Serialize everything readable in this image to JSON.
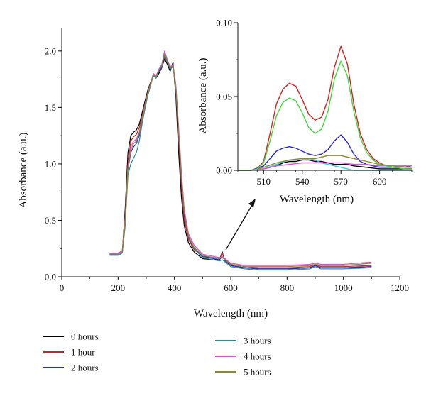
{
  "chart_data": [
    {
      "type": "line",
      "xlabel": "Wavelength (nm)",
      "ylabel": "Absorbance (a.u.)",
      "xlim": [
        0,
        1200
      ],
      "ylim": [
        0,
        2.2
      ],
      "xticks": [
        0,
        200,
        400,
        600,
        800,
        1000,
        1200
      ],
      "yticks": [
        0.0,
        0.5,
        1.0,
        1.5,
        2.0
      ],
      "xtick_labels": [
        "0",
        "200",
        "400",
        "600",
        "800",
        "1000",
        "1200"
      ],
      "ytick_labels": [
        "0.0",
        "0.5",
        "1.0",
        "1.5",
        "2.0"
      ],
      "grid": false,
      "legend_placement": "bottom",
      "series": [
        {
          "name": "0 hours",
          "color": "#000000",
          "x": [
            170,
            200,
            215,
            225,
            235,
            245,
            255,
            265,
            275,
            285,
            295,
            305,
            315,
            325,
            335,
            345,
            355,
            365,
            375,
            385,
            395,
            405,
            415,
            425,
            435,
            450,
            470,
            500,
            540,
            560,
            570,
            575,
            580,
            600,
            650,
            700,
            800,
            880,
            900,
            920,
            1000,
            1100
          ],
          "y": [
            0.2,
            0.2,
            0.22,
            0.6,
            1.1,
            1.25,
            1.28,
            1.3,
            1.35,
            1.45,
            1.55,
            1.65,
            1.72,
            1.78,
            1.76,
            1.8,
            1.85,
            1.93,
            1.88,
            1.82,
            1.9,
            1.6,
            1.1,
            0.7,
            0.45,
            0.3,
            0.22,
            0.16,
            0.15,
            0.15,
            0.22,
            0.17,
            0.14,
            0.1,
            0.08,
            0.07,
            0.07,
            0.08,
            0.1,
            0.08,
            0.08,
            0.09
          ]
        },
        {
          "name": "1 hour",
          "color": "#d61f1f",
          "x": [
            170,
            200,
            215,
            225,
            235,
            245,
            255,
            265,
            275,
            285,
            295,
            305,
            315,
            325,
            335,
            345,
            355,
            365,
            375,
            385,
            395,
            405,
            415,
            425,
            435,
            450,
            470,
            500,
            540,
            560,
            570,
            575,
            580,
            600,
            650,
            700,
            800,
            880,
            900,
            920,
            1000,
            1100
          ],
          "y": [
            0.21,
            0.21,
            0.23,
            0.55,
            1.0,
            1.2,
            1.24,
            1.26,
            1.32,
            1.42,
            1.53,
            1.63,
            1.71,
            1.79,
            1.77,
            1.82,
            1.86,
            1.95,
            1.9,
            1.85,
            1.88,
            1.65,
            1.2,
            0.8,
            0.5,
            0.33,
            0.24,
            0.18,
            0.17,
            0.16,
            0.21,
            0.17,
            0.15,
            0.11,
            0.09,
            0.08,
            0.08,
            0.09,
            0.11,
            0.09,
            0.09,
            0.1
          ]
        },
        {
          "name": "2 hours",
          "color": "#2a2ad4",
          "x": [
            170,
            200,
            215,
            225,
            235,
            245,
            255,
            265,
            275,
            285,
            295,
            305,
            315,
            325,
            335,
            345,
            355,
            365,
            375,
            385,
            395,
            405,
            415,
            425,
            435,
            450,
            470,
            500,
            540,
            560,
            570,
            575,
            580,
            600,
            650,
            700,
            800,
            880,
            900,
            920,
            1000,
            1100
          ],
          "y": [
            0.2,
            0.2,
            0.22,
            0.5,
            0.95,
            1.1,
            1.15,
            1.18,
            1.25,
            1.38,
            1.5,
            1.62,
            1.7,
            1.78,
            1.76,
            1.82,
            1.85,
            1.96,
            1.9,
            1.84,
            1.87,
            1.66,
            1.25,
            0.85,
            0.55,
            0.35,
            0.25,
            0.18,
            0.16,
            0.15,
            0.18,
            0.16,
            0.14,
            0.1,
            0.08,
            0.07,
            0.07,
            0.08,
            0.1,
            0.08,
            0.08,
            0.09
          ]
        },
        {
          "name": "3 hours",
          "color": "#2a8fa0",
          "x": [
            170,
            200,
            215,
            225,
            235,
            245,
            255,
            265,
            275,
            285,
            295,
            305,
            315,
            325,
            335,
            345,
            355,
            365,
            375,
            385,
            395,
            405,
            415,
            425,
            435,
            450,
            470,
            500,
            540,
            560,
            570,
            575,
            580,
            600,
            650,
            700,
            800,
            880,
            900,
            920,
            1000,
            1100
          ],
          "y": [
            0.19,
            0.19,
            0.21,
            0.45,
            0.9,
            1.0,
            1.05,
            1.1,
            1.2,
            1.35,
            1.48,
            1.6,
            1.69,
            1.78,
            1.76,
            1.83,
            1.86,
            1.97,
            1.9,
            1.84,
            1.86,
            1.68,
            1.3,
            0.9,
            0.58,
            0.36,
            0.25,
            0.17,
            0.15,
            0.14,
            0.15,
            0.14,
            0.13,
            0.09,
            0.07,
            0.06,
            0.06,
            0.07,
            0.09,
            0.07,
            0.07,
            0.08
          ]
        },
        {
          "name": "4 hours",
          "color": "#e24be2",
          "x": [
            170,
            200,
            215,
            225,
            235,
            245,
            255,
            265,
            275,
            285,
            295,
            305,
            315,
            325,
            335,
            345,
            355,
            365,
            375,
            385,
            395,
            405,
            415,
            425,
            435,
            450,
            470,
            500,
            540,
            560,
            570,
            575,
            580,
            600,
            650,
            700,
            800,
            880,
            900,
            920,
            1000,
            1100
          ],
          "y": [
            0.21,
            0.21,
            0.23,
            0.52,
            0.98,
            1.15,
            1.2,
            1.22,
            1.28,
            1.4,
            1.52,
            1.63,
            1.71,
            1.8,
            1.78,
            1.84,
            1.88,
            2.0,
            1.92,
            1.86,
            1.88,
            1.7,
            1.32,
            0.92,
            0.6,
            0.38,
            0.28,
            0.2,
            0.18,
            0.17,
            0.18,
            0.17,
            0.16,
            0.12,
            0.1,
            0.1,
            0.1,
            0.11,
            0.12,
            0.11,
            0.11,
            0.13
          ]
        },
        {
          "name": "5 hours",
          "color": "#8a8a2a",
          "x": [
            170,
            200,
            215,
            225,
            235,
            245,
            255,
            265,
            275,
            285,
            295,
            305,
            315,
            325,
            335,
            345,
            355,
            365,
            375,
            385,
            395,
            405,
            415,
            425,
            435,
            450,
            470,
            500,
            540,
            560,
            570,
            575,
            580,
            600,
            650,
            700,
            800,
            880,
            900,
            920,
            1000,
            1100
          ],
          "y": [
            0.2,
            0.2,
            0.22,
            0.5,
            0.96,
            1.12,
            1.18,
            1.2,
            1.27,
            1.39,
            1.51,
            1.62,
            1.7,
            1.79,
            1.77,
            1.83,
            1.87,
            1.98,
            1.91,
            1.85,
            1.87,
            1.68,
            1.28,
            0.88,
            0.57,
            0.36,
            0.26,
            0.19,
            0.17,
            0.16,
            0.17,
            0.16,
            0.15,
            0.11,
            0.09,
            0.09,
            0.09,
            0.1,
            0.11,
            0.1,
            0.1,
            0.12
          ]
        }
      ]
    },
    {
      "type": "line",
      "xlabel": "Wavelength (nm)",
      "ylabel": "Absorbance (a.u.)",
      "xlim": [
        490,
        625
      ],
      "ylim": [
        0,
        0.1
      ],
      "xticks": [
        510,
        540,
        570,
        600
      ],
      "yticks": [
        0.0,
        0.05,
        0.1
      ],
      "xtick_labels": [
        "510",
        "540",
        "570",
        "600"
      ],
      "ytick_labels": [
        "0.00",
        "0.05",
        "0.10"
      ],
      "grid": false,
      "series": [
        {
          "name": "0 hours",
          "color": "#000000",
          "x": [
            490,
            500,
            510,
            520,
            525,
            530,
            535,
            540,
            545,
            550,
            555,
            560,
            565,
            570,
            575,
            580,
            590,
            600,
            610,
            620,
            625
          ],
          "y": [
            0,
            0,
            0.001,
            0.003,
            0.005,
            0.006,
            0.006,
            0.007,
            0.007,
            0.006,
            0.006,
            0.005,
            0.004,
            0.004,
            0.004,
            0.003,
            0.002,
            0.001,
            0.001,
            0.001,
            0.001
          ]
        },
        {
          "name": "1 hour",
          "color": "#d61f1f",
          "x": [
            490,
            500,
            505,
            510,
            515,
            520,
            525,
            530,
            535,
            540,
            545,
            550,
            555,
            560,
            565,
            570,
            575,
            580,
            585,
            590,
            595,
            600,
            605,
            610,
            620,
            625
          ],
          "y": [
            0,
            0,
            0.001,
            0.006,
            0.025,
            0.045,
            0.055,
            0.059,
            0.057,
            0.048,
            0.038,
            0.034,
            0.036,
            0.048,
            0.07,
            0.084,
            0.072,
            0.045,
            0.025,
            0.014,
            0.008,
            0.005,
            0.003,
            0.002,
            0.001,
            0.001
          ]
        },
        {
          "name": "2 hours",
          "color": "#2a2ad4",
          "x": [
            490,
            500,
            510,
            515,
            520,
            525,
            530,
            535,
            540,
            545,
            550,
            555,
            560,
            565,
            570,
            575,
            580,
            585,
            590,
            600,
            610,
            620,
            625
          ],
          "y": [
            0,
            0,
            0.003,
            0.008,
            0.013,
            0.015,
            0.016,
            0.015,
            0.013,
            0.011,
            0.01,
            0.011,
            0.014,
            0.02,
            0.024,
            0.019,
            0.011,
            0.006,
            0.004,
            0.002,
            0.002,
            0.003,
            0.002
          ]
        },
        {
          "name": "3 hours",
          "color": "#2ad4e0",
          "x": [
            490,
            500,
            510,
            520,
            530,
            540,
            545,
            550,
            555,
            560,
            565,
            570,
            575,
            580,
            590,
            600,
            610,
            620,
            625
          ],
          "y": [
            0,
            0,
            0.001,
            0.004,
            0.007,
            0.008,
            0.008,
            0.007,
            0.005,
            0.004,
            0.003,
            0.002,
            0.001,
            0,
            0,
            0,
            0,
            0,
            0
          ]
        },
        {
          "name": "4 hours",
          "color": "#e24be2",
          "x": [
            490,
            500,
            510,
            520,
            530,
            540,
            550,
            560,
            570,
            580,
            590,
            600,
            610,
            620,
            625
          ],
          "y": [
            0,
            0,
            0.001,
            0.003,
            0.004,
            0.005,
            0.005,
            0.005,
            0.005,
            0.004,
            0.004,
            0.003,
            0.003,
            0.003,
            0.003
          ]
        },
        {
          "name": "5 hours",
          "color": "#8a8a2a",
          "x": [
            490,
            500,
            510,
            520,
            530,
            540,
            550,
            560,
            570,
            575,
            580,
            590,
            600,
            610,
            620,
            625
          ],
          "y": [
            0,
            0,
            0.002,
            0.005,
            0.007,
            0.008,
            0.008,
            0.01,
            0.01,
            0.009,
            0.008,
            0.006,
            0.004,
            0.003,
            0.002,
            0.002
          ]
        },
        {
          "name": "",
          "color": "#3cd83c",
          "x": [
            490,
            500,
            505,
            510,
            515,
            520,
            525,
            530,
            535,
            540,
            545,
            550,
            555,
            560,
            565,
            570,
            575,
            580,
            585,
            590,
            595,
            600,
            605,
            610,
            620,
            625
          ],
          "y": [
            0,
            0,
            0.001,
            0.005,
            0.02,
            0.037,
            0.046,
            0.049,
            0.047,
            0.039,
            0.029,
            0.025,
            0.028,
            0.04,
            0.062,
            0.074,
            0.064,
            0.04,
            0.022,
            0.012,
            0.007,
            0.004,
            0.003,
            0.002,
            0.001,
            0.001
          ]
        }
      ]
    }
  ]
}
